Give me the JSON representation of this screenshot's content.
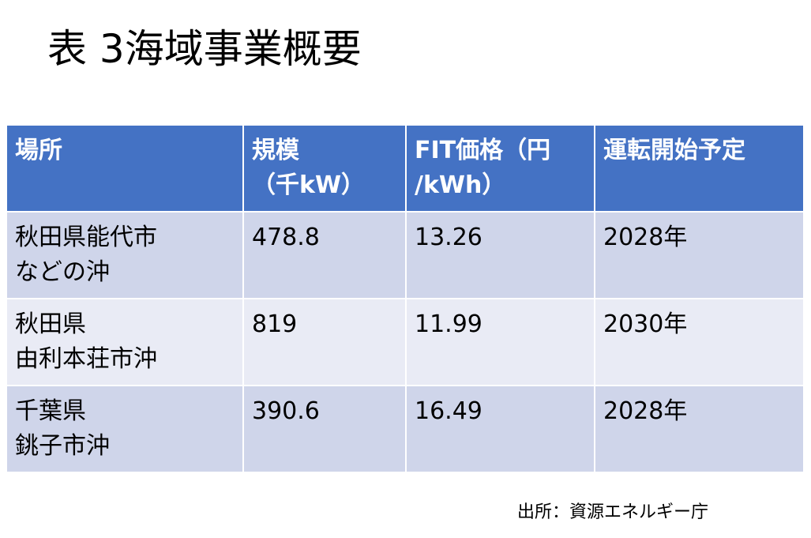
{
  "title": "表 3海域事業概要",
  "table": {
    "header": [
      [
        "場所"
      ],
      [
        "規模",
        "（千kW）"
      ],
      [
        "FIT価格（円",
        "/kWh）"
      ],
      [
        "運転開始予定"
      ]
    ],
    "rows": [
      [
        [
          "秋田県能代市",
          "などの沖"
        ],
        478.8,
        13.26,
        "2028年"
      ],
      [
        [
          "秋田県",
          "由利本荘市沖"
        ],
        819,
        11.99,
        "2030年"
      ],
      [
        [
          "千葉県",
          "銚子市沖"
        ],
        390.6,
        16.49,
        "2028年"
      ]
    ]
  },
  "source": "出所：資源エネルギー庁"
}
